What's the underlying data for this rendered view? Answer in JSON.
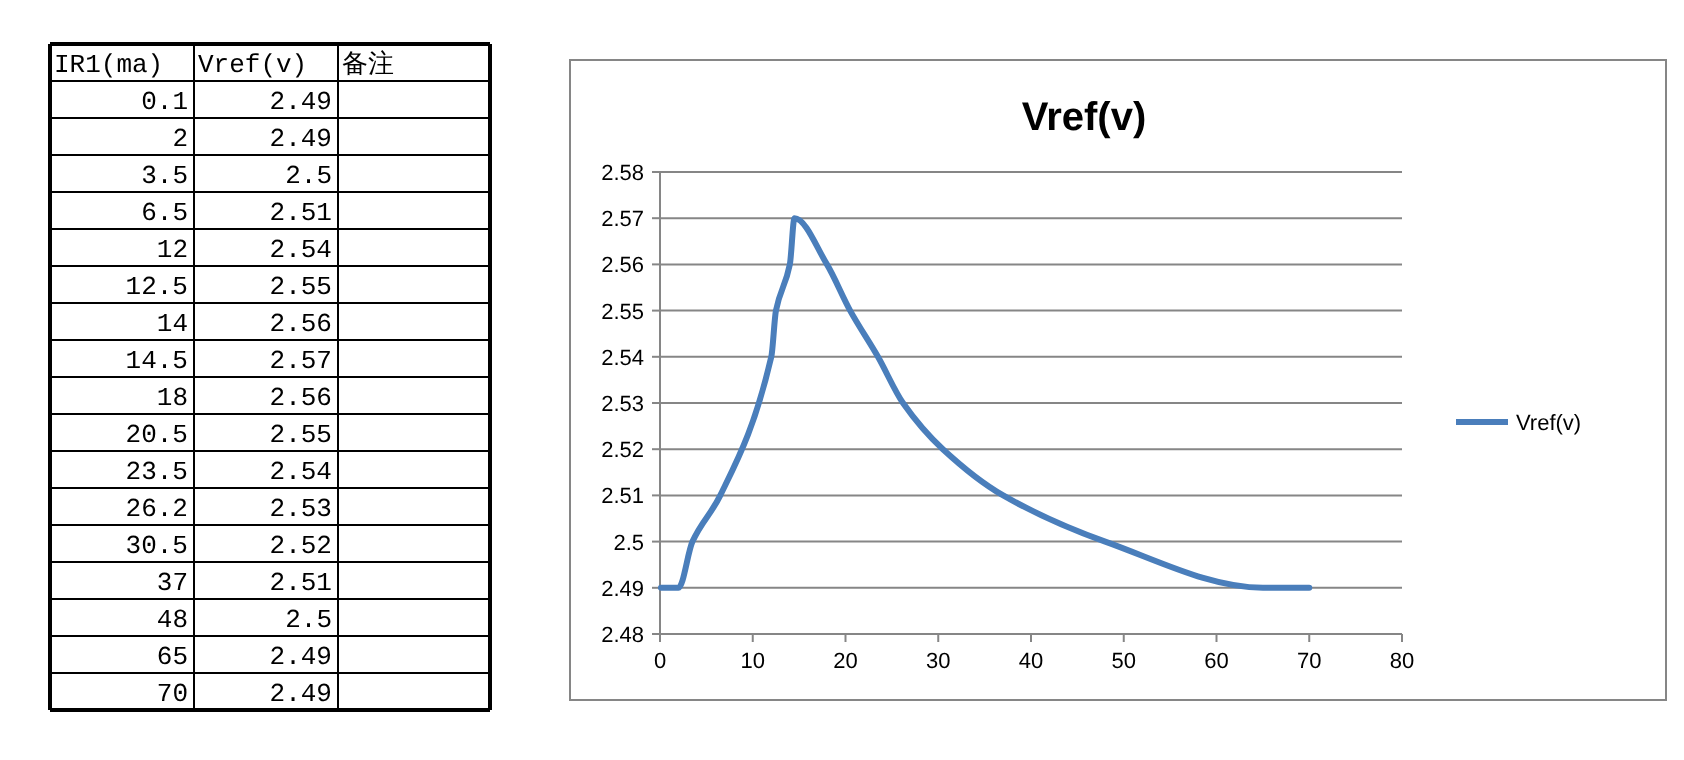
{
  "chart_data": [
    {
      "type": "other",
      "categories": [
        "IR1(ma)",
        "Vref(v)",
        "备注"
      ],
      "cell_labels": [
        [
          "0.1",
          "2.49",
          null
        ],
        [
          "2",
          "2.49",
          null
        ],
        [
          "3.5",
          "2.5",
          null
        ],
        [
          "6.5",
          "2.51",
          null
        ],
        [
          "12",
          "2.54",
          null
        ],
        [
          "12.5",
          "2.55",
          null
        ],
        [
          "14",
          "2.56",
          null
        ],
        [
          "14.5",
          "2.57",
          null
        ],
        [
          "18",
          "2.56",
          null
        ],
        [
          "20.5",
          "2.55",
          null
        ],
        [
          "23.5",
          "2.54",
          null
        ],
        [
          "26.2",
          "2.53",
          null
        ],
        [
          "30.5",
          "2.52",
          null
        ],
        [
          "37",
          "2.51",
          null
        ],
        [
          "48",
          "2.5",
          null
        ],
        [
          "65",
          "2.49",
          null
        ],
        [
          "70",
          "2.49",
          null
        ]
      ]
    },
    {
      "type": "line",
      "title": "Vref(v)",
      "x": [
        0.1,
        2,
        3.5,
        6.5,
        12,
        12.5,
        14,
        14.5,
        18,
        20.5,
        23.5,
        26.2,
        30.5,
        37,
        48,
        65,
        70
      ],
      "series": [
        {
          "name": "Vref(v)",
          "color": "#4a7ebb",
          "values": [
            2.49,
            2.49,
            2.5,
            2.51,
            2.54,
            2.55,
            2.56,
            2.57,
            2.56,
            2.55,
            2.54,
            2.53,
            2.52,
            2.51,
            2.5,
            2.49,
            2.49
          ]
        }
      ],
      "xlim": [
        0,
        80
      ],
      "xticks": [
        0,
        10,
        20,
        30,
        40,
        50,
        60,
        70,
        80
      ],
      "ylim": [
        2.48,
        2.58
      ],
      "yticks": [
        2.48,
        2.49,
        2.5,
        2.51,
        2.52,
        2.53,
        2.54,
        2.55,
        2.56,
        2.57,
        2.58
      ],
      "grid": "y",
      "legend": "right"
    }
  ]
}
